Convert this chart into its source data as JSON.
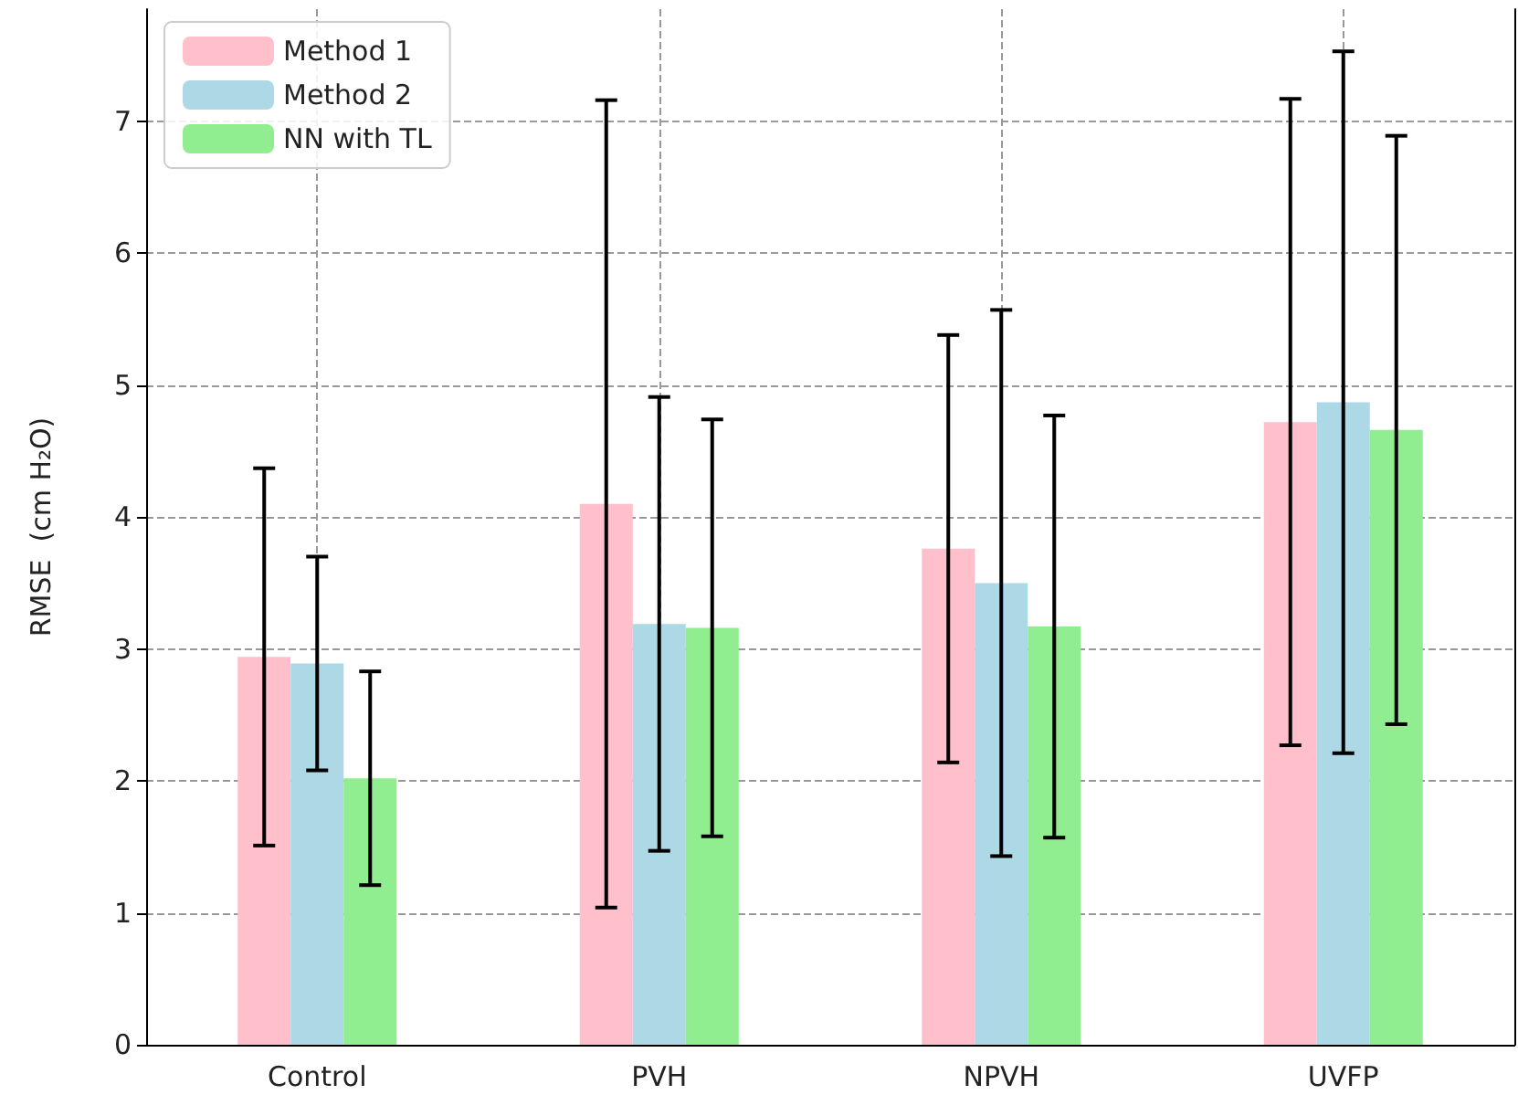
{
  "chart_data": {
    "type": "bar",
    "ylabel": "RMSE  (cm H₂O)",
    "categories": [
      "Control",
      "PVH",
      "NPVH",
      "UVFP"
    ],
    "series": [
      {
        "name": "Method 1",
        "color": "#ffc0cb",
        "values": [
          2.94,
          4.1,
          3.76,
          4.72
        ],
        "errors": [
          1.43,
          3.06,
          1.62,
          2.45
        ]
      },
      {
        "name": "Method 2",
        "color": "#add8e6",
        "values": [
          2.89,
          3.19,
          3.5,
          4.87
        ],
        "errors": [
          0.81,
          1.72,
          2.07,
          2.66
        ]
      },
      {
        "name": "NN with TL",
        "color": "#90ee90",
        "values": [
          2.02,
          3.16,
          3.17,
          4.66
        ],
        "errors": [
          0.81,
          1.58,
          1.6,
          2.23
        ]
      }
    ],
    "ylim": [
      0,
      7.85
    ],
    "yticks": [
      0,
      1,
      2,
      3,
      4,
      5,
      6,
      7
    ],
    "grid": true,
    "legend": "top left"
  }
}
